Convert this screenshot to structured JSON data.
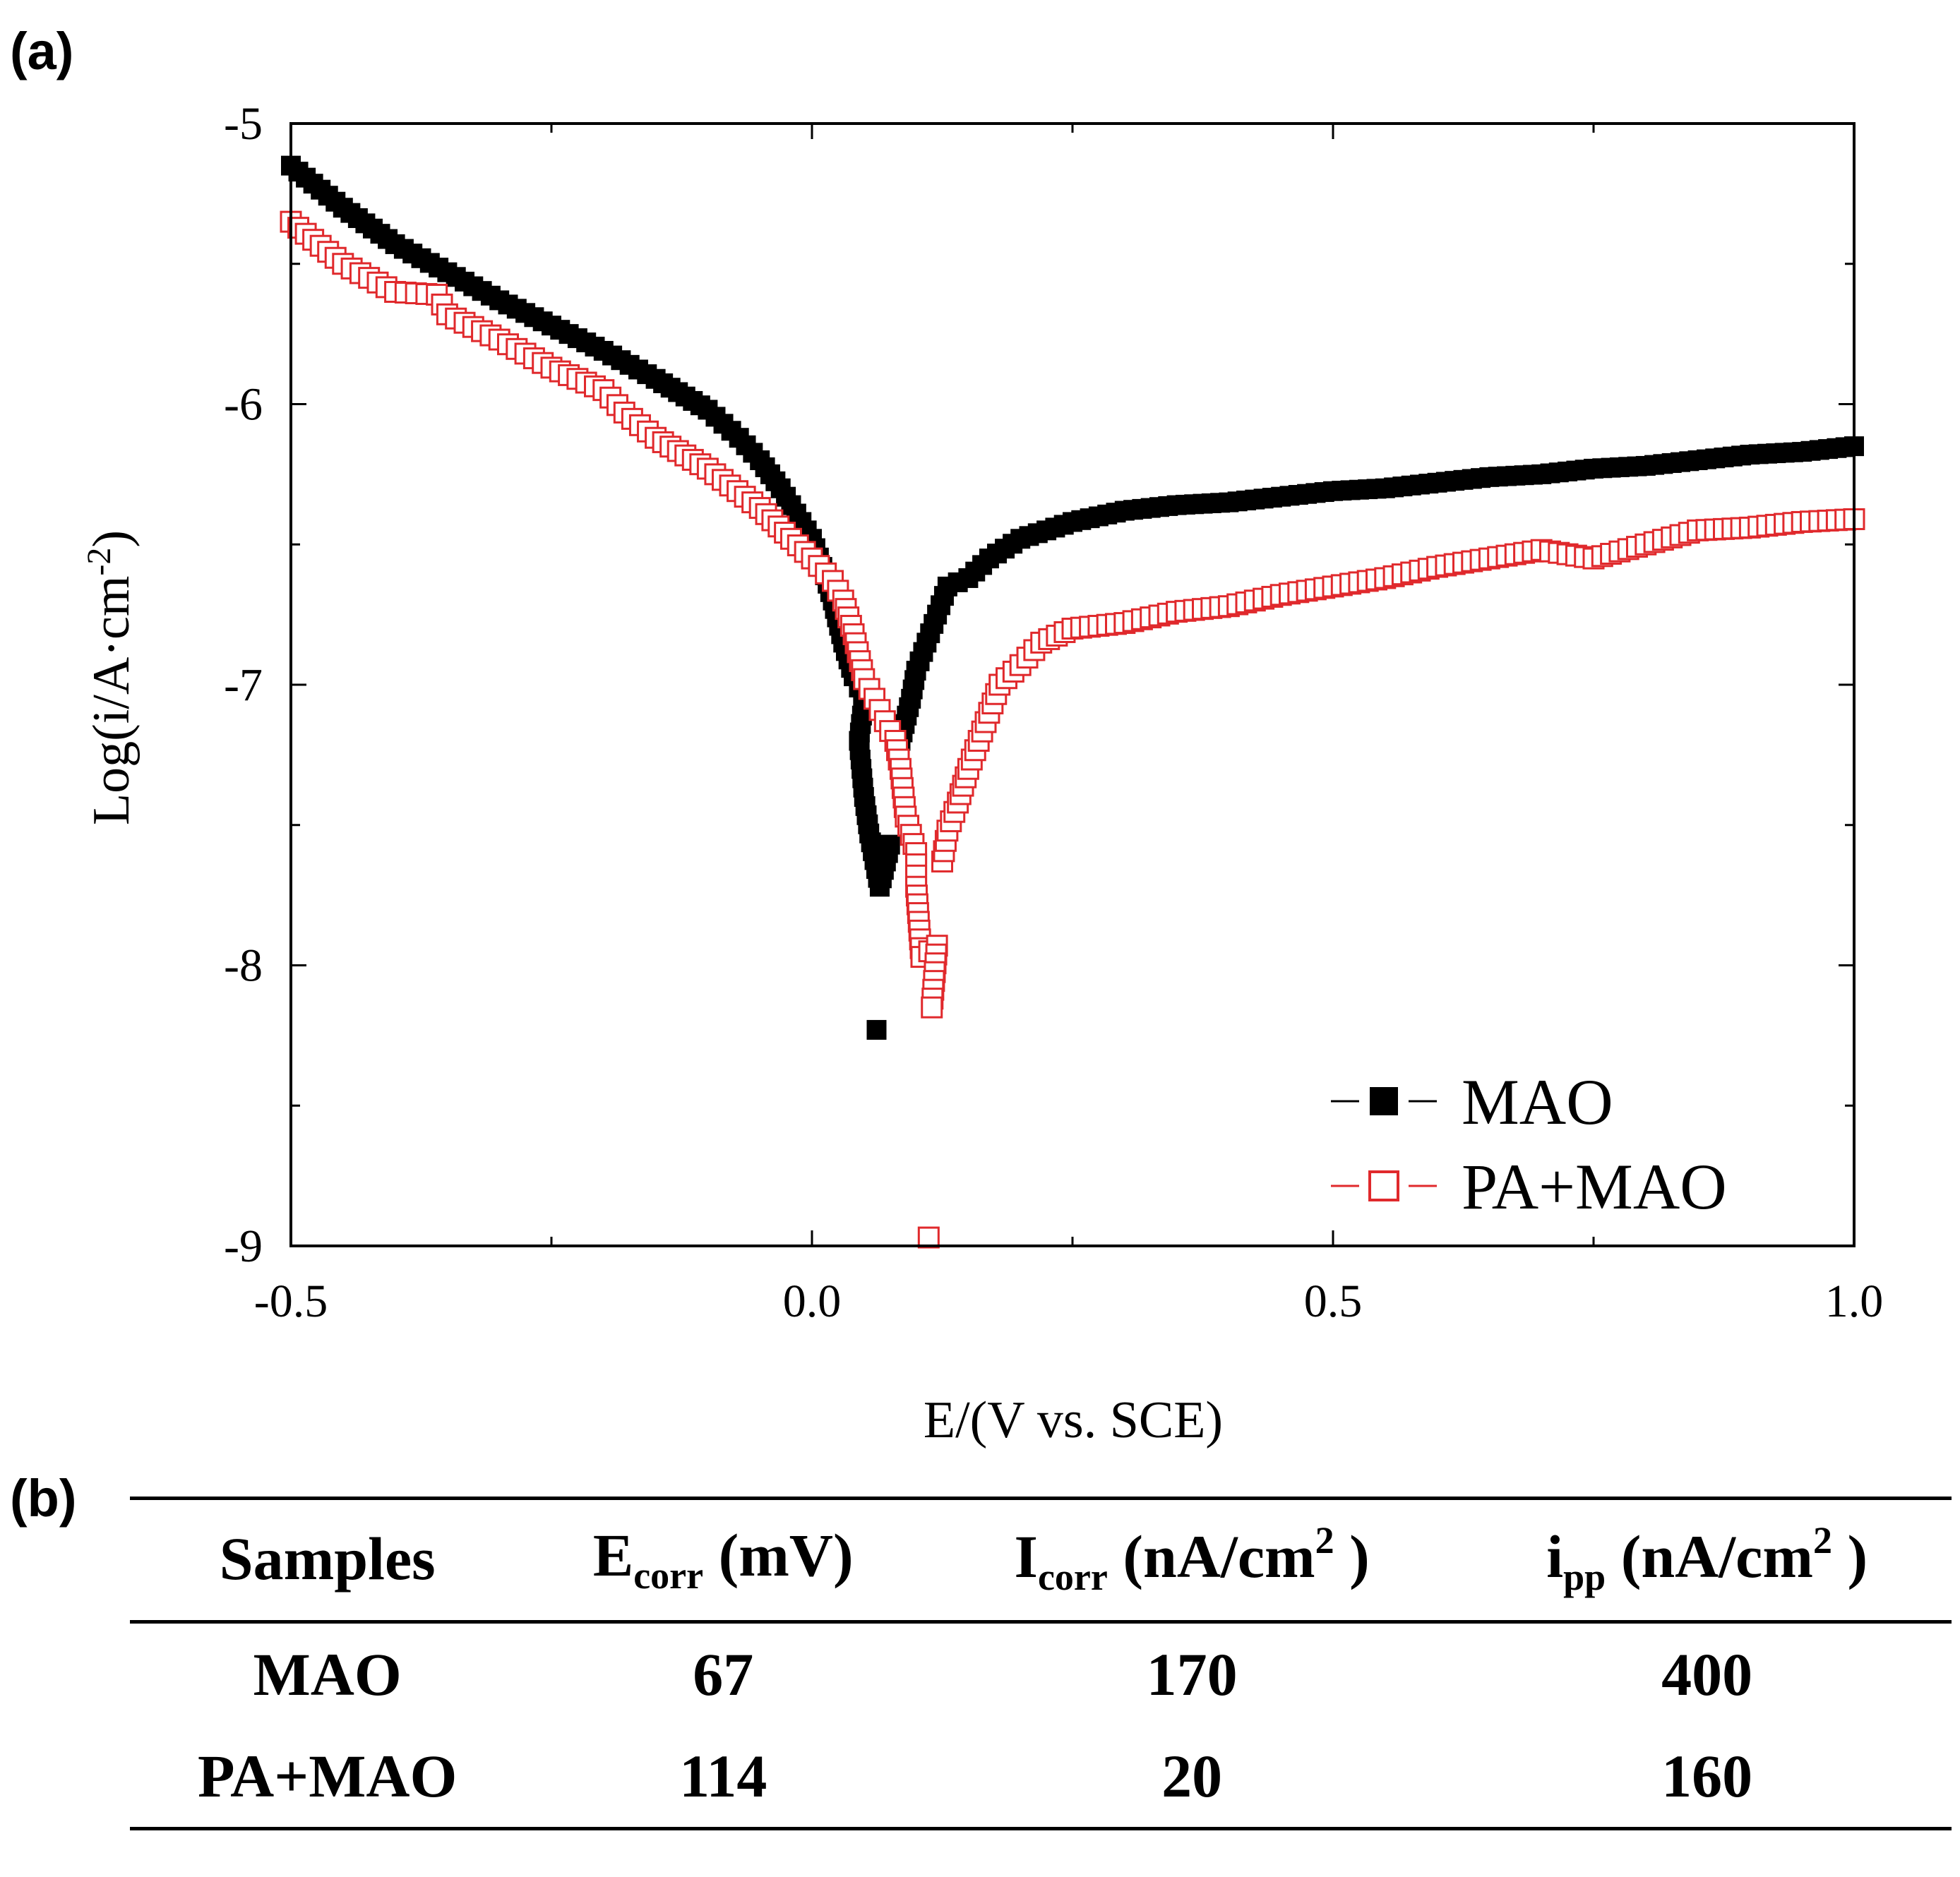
{
  "panel_a_label": "(a)",
  "panel_b_label": "(b)",
  "chart_data": {
    "type": "scatter",
    "title": "",
    "xlabel": "E/(V vs. SCE)",
    "ylabel": "Log(i/A·cm",
    "ylabel_sup": "-2",
    "ylabel_close": ")",
    "xlim": [
      -0.5,
      1.0
    ],
    "ylim": [
      -9,
      -5
    ],
    "xticks": [
      "-0.5",
      "0.0",
      "0.5",
      "1.0"
    ],
    "yticks": [
      "-5",
      "-6",
      "-7",
      "-8",
      "-9"
    ],
    "legend_position": "bottom-right",
    "grid": false,
    "series": [
      {
        "name": "MAO",
        "marker": "filled-square",
        "color": "#000000",
        "points": [
          [
            -0.5,
            -5.15
          ],
          [
            -0.45,
            -5.3
          ],
          [
            -0.4,
            -5.43
          ],
          [
            -0.35,
            -5.53
          ],
          [
            -0.3,
            -5.63
          ],
          [
            -0.25,
            -5.72
          ],
          [
            -0.2,
            -5.81
          ],
          [
            -0.15,
            -5.91
          ],
          [
            -0.1,
            -6.02
          ],
          [
            -0.07,
            -6.12
          ],
          [
            -0.05,
            -6.2
          ],
          [
            -0.03,
            -6.3
          ],
          [
            -0.01,
            -6.42
          ],
          [
            0.0,
            -6.48
          ],
          [
            0.01,
            -6.58
          ],
          [
            0.02,
            -6.7
          ],
          [
            0.03,
            -6.85
          ],
          [
            0.04,
            -6.97
          ],
          [
            0.05,
            -7.05
          ],
          [
            0.045,
            -7.2
          ],
          [
            0.05,
            -7.4
          ],
          [
            0.055,
            -7.53
          ],
          [
            0.065,
            -7.72
          ],
          [
            0.075,
            -7.57
          ],
          [
            0.062,
            -8.23
          ],
          [
            0.085,
            -7.2
          ],
          [
            0.095,
            -7.05
          ],
          [
            0.1,
            -6.95
          ],
          [
            0.11,
            -6.85
          ],
          [
            0.12,
            -6.75
          ],
          [
            0.13,
            -6.65
          ],
          [
            0.15,
            -6.62
          ],
          [
            0.17,
            -6.55
          ],
          [
            0.2,
            -6.48
          ],
          [
            0.25,
            -6.42
          ],
          [
            0.3,
            -6.38
          ],
          [
            0.35,
            -6.36
          ],
          [
            0.4,
            -6.35
          ],
          [
            0.45,
            -6.33
          ],
          [
            0.5,
            -6.31
          ],
          [
            0.55,
            -6.3
          ],
          [
            0.6,
            -6.28
          ],
          [
            0.65,
            -6.26
          ],
          [
            0.7,
            -6.25
          ],
          [
            0.75,
            -6.23
          ],
          [
            0.8,
            -6.22
          ],
          [
            0.85,
            -6.2
          ],
          [
            0.9,
            -6.18
          ],
          [
            0.95,
            -6.17
          ],
          [
            1.0,
            -6.15
          ]
        ]
      },
      {
        "name": "PA+MAO",
        "marker": "open-square",
        "color": "#e0292c",
        "points": [
          [
            -0.5,
            -5.35
          ],
          [
            -0.45,
            -5.5
          ],
          [
            -0.4,
            -5.6
          ],
          [
            -0.36,
            -5.61
          ],
          [
            -0.35,
            -5.68
          ],
          [
            -0.3,
            -5.77
          ],
          [
            -0.25,
            -5.87
          ],
          [
            -0.2,
            -5.95
          ],
          [
            -0.18,
            -6.03
          ],
          [
            -0.15,
            -6.12
          ],
          [
            -0.1,
            -6.23
          ],
          [
            -0.05,
            -6.37
          ],
          [
            -0.02,
            -6.48
          ],
          [
            0.0,
            -6.55
          ],
          [
            0.02,
            -6.63
          ],
          [
            0.03,
            -6.7
          ],
          [
            0.04,
            -6.82
          ],
          [
            0.05,
            -6.98
          ],
          [
            0.06,
            -7.05
          ],
          [
            0.07,
            -7.13
          ],
          [
            0.08,
            -7.2
          ],
          [
            0.085,
            -7.3
          ],
          [
            0.09,
            -7.47
          ],
          [
            0.1,
            -7.6
          ],
          [
            0.1,
            -7.72
          ],
          [
            0.105,
            -7.97
          ],
          [
            0.12,
            -7.93
          ],
          [
            0.115,
            -8.15
          ],
          [
            0.112,
            -8.97
          ],
          [
            0.125,
            -7.63
          ],
          [
            0.13,
            -7.52
          ],
          [
            0.14,
            -7.42
          ],
          [
            0.15,
            -7.3
          ],
          [
            0.16,
            -7.2
          ],
          [
            0.17,
            -7.1
          ],
          [
            0.18,
            -7.0
          ],
          [
            0.2,
            -6.93
          ],
          [
            0.22,
            -6.85
          ],
          [
            0.25,
            -6.8
          ],
          [
            0.3,
            -6.78
          ],
          [
            0.35,
            -6.74
          ],
          [
            0.4,
            -6.72
          ],
          [
            0.45,
            -6.68
          ],
          [
            0.5,
            -6.65
          ],
          [
            0.55,
            -6.62
          ],
          [
            0.6,
            -6.58
          ],
          [
            0.65,
            -6.55
          ],
          [
            0.7,
            -6.52
          ],
          [
            0.75,
            -6.55
          ],
          [
            0.8,
            -6.5
          ],
          [
            0.85,
            -6.45
          ],
          [
            0.9,
            -6.44
          ],
          [
            0.95,
            -6.42
          ],
          [
            1.0,
            -6.41
          ]
        ]
      }
    ]
  },
  "table": {
    "headers": [
      {
        "main": "Samples",
        "sub": "",
        "unit": "",
        "unit_sup": "",
        "unit_close": ""
      },
      {
        "main": "E",
        "sub": "corr",
        "unit": " (mV)",
        "unit_sup": "",
        "unit_close": ""
      },
      {
        "main": "I",
        "sub": "corr",
        "unit": " (nA/cm",
        "unit_sup": "2",
        "unit_close": " )"
      },
      {
        "main": "i",
        "sub": "pp",
        "unit": " (nA/cm",
        "unit_sup": "2",
        "unit_close": " )"
      }
    ],
    "rows": [
      [
        "MAO",
        "67",
        "170",
        "400"
      ],
      [
        "PA+MAO",
        "114",
        "20",
        "160"
      ]
    ]
  }
}
